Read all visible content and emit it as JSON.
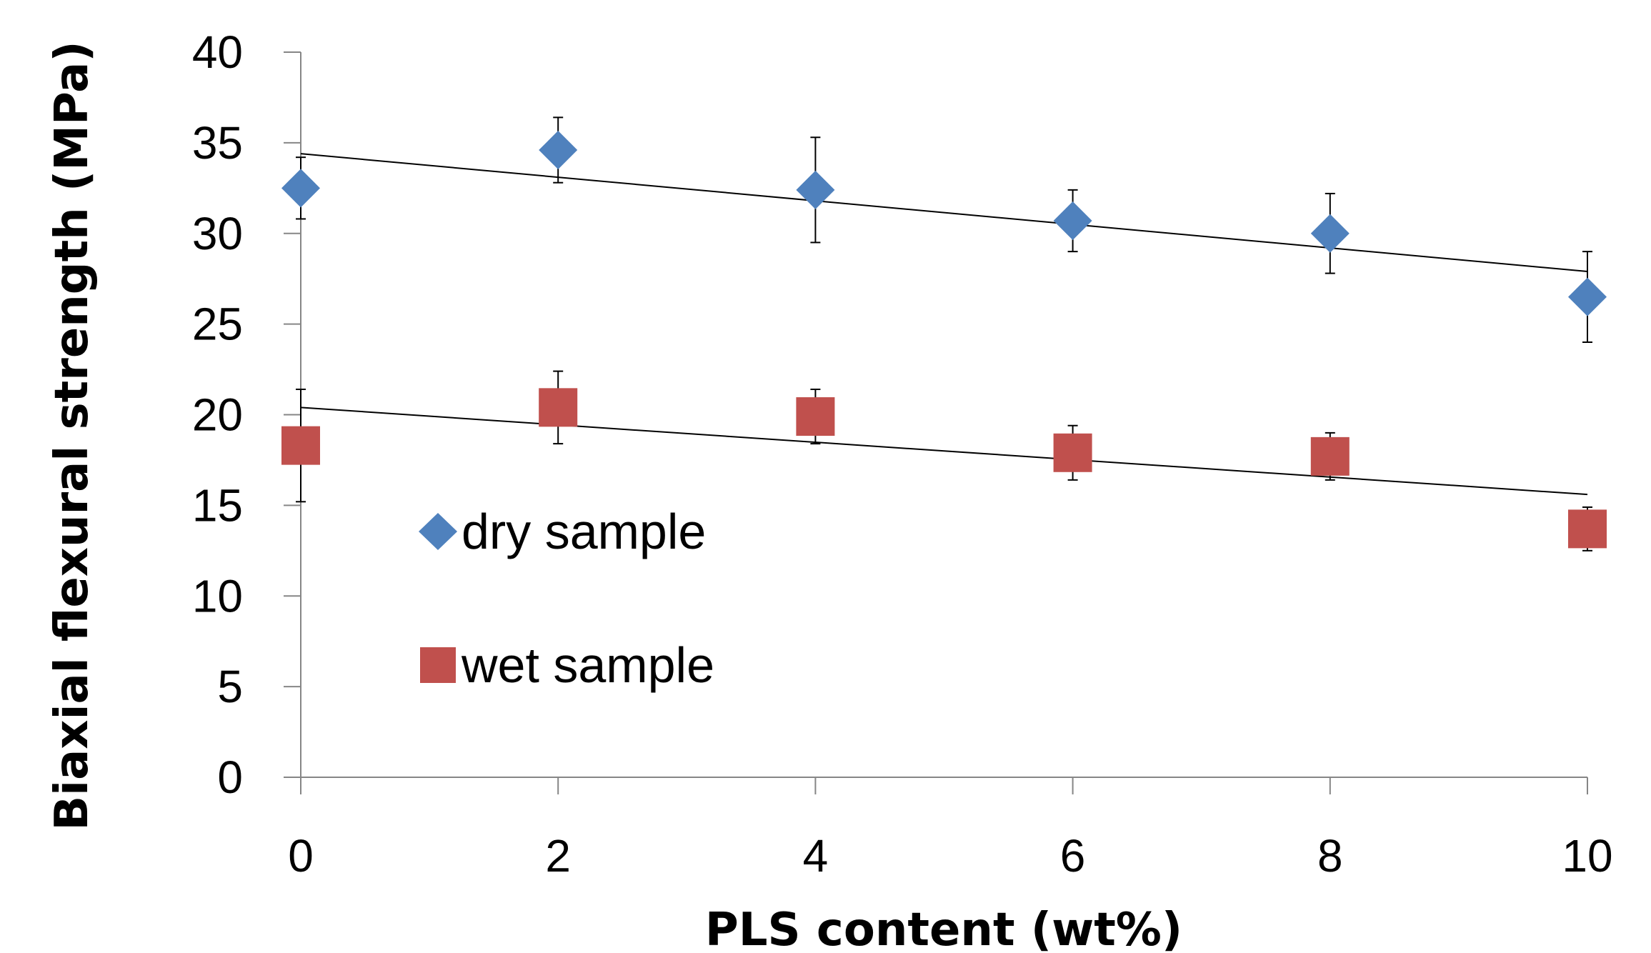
{
  "chart_data": {
    "type": "scatter",
    "xlabel": "PLS content (wt%)",
    "ylabel": "Biaxial flexural strength (MPa)",
    "xlim": [
      0,
      10
    ],
    "ylim": [
      0,
      40
    ],
    "xticks": [
      0,
      2,
      4,
      6,
      8,
      10
    ],
    "yticks": [
      0,
      5,
      10,
      15,
      20,
      25,
      30,
      35,
      40
    ],
    "grid": false,
    "legend_position": "center-left",
    "series": [
      {
        "name": "dry sample",
        "marker": "diamond",
        "color": "#4F81BD",
        "x": [
          0,
          2,
          4,
          6,
          8,
          10
        ],
        "y": [
          32.5,
          34.6,
          32.4,
          30.7,
          30.0,
          26.5
        ],
        "error": [
          1.7,
          1.8,
          2.9,
          1.7,
          2.2,
          2.5
        ],
        "trendline": {
          "x": [
            0,
            10
          ],
          "y": [
            34.4,
            27.9
          ]
        }
      },
      {
        "name": "wet sample",
        "marker": "square",
        "color": "#C0504D",
        "x": [
          0,
          2,
          4,
          6,
          8,
          10
        ],
        "y": [
          18.3,
          20.4,
          19.9,
          17.9,
          17.7,
          13.7
        ],
        "error": [
          3.1,
          2.0,
          1.5,
          1.5,
          1.3,
          1.2
        ],
        "trendline": {
          "x": [
            0,
            10
          ],
          "y": [
            20.4,
            15.6
          ]
        }
      }
    ]
  }
}
